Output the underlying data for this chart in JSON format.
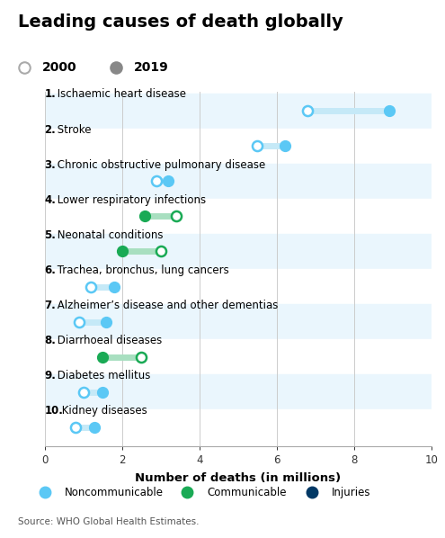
{
  "title": "Leading causes of death globally",
  "xlabel": "Number of deaths (in millions)",
  "source": "Source: WHO Global Health Estimates.",
  "categories": [
    "1. Ischaemic heart disease",
    "2. Stroke",
    "3. Chronic obstructive pulmonary disease",
    "4. Lower respiratory infections",
    "5. Neonatal conditions",
    "6. Trachea, bronchus, lung cancers",
    "7. Alzheimer’s disease and other dementias",
    "8. Diarrhoeal diseases",
    "9. Diabetes mellitus",
    "10. Kidney diseases"
  ],
  "val_2000": [
    6.8,
    5.5,
    2.9,
    3.4,
    3.0,
    1.2,
    0.9,
    2.5,
    1.0,
    0.8
  ],
  "val_2019": [
    8.9,
    6.2,
    3.2,
    2.6,
    2.0,
    1.8,
    1.6,
    1.5,
    1.5,
    1.3
  ],
  "category_type": [
    "noncommunicable",
    "noncommunicable",
    "noncommunicable",
    "communicable",
    "communicable",
    "noncommunicable",
    "noncommunicable",
    "communicable",
    "noncommunicable",
    "noncommunicable"
  ],
  "color_noncommunicable": "#5bc8f5",
  "color_communicable": "#1aaa55",
  "color_injuries": "#003865",
  "color_line_noncommunicable": "#c5e9f7",
  "color_line_communicable": "#a8dfc0",
  "bg_stripe_odd": "#eaf6fd",
  "bg_stripe_even": "#ffffff",
  "xlim": [
    0,
    10
  ],
  "xticks": [
    0,
    2,
    4,
    6,
    8,
    10
  ],
  "title_fontsize": 14,
  "label_fontsize": 8.5,
  "tick_fontsize": 8.5,
  "legend_fontsize": 8.5,
  "source_fontsize": 7.5,
  "year_legend_fontsize": 10
}
